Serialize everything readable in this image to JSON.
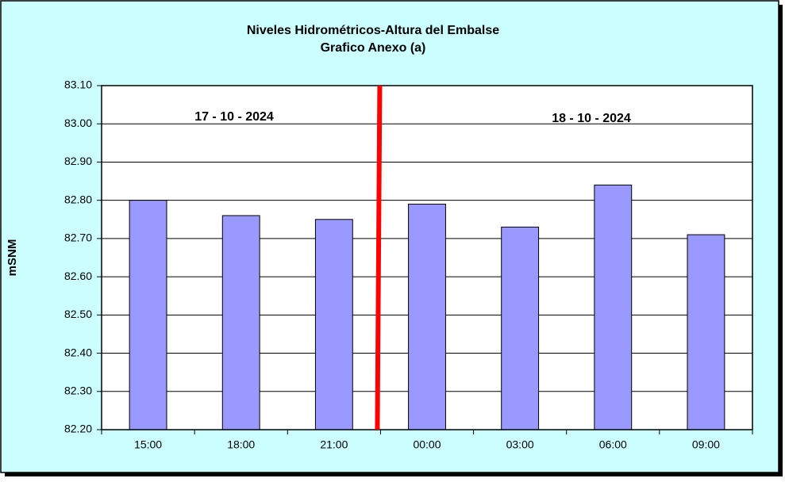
{
  "chart_data": {
    "type": "bar",
    "title": "Niveles Hidrométricos-Altura del Embalse",
    "subtitle": "Grafico Anexo (a)",
    "y_label": "mSNM",
    "annotations": [
      "17 - 10 - 2024",
      "18 - 10 - 2024"
    ],
    "categories": [
      "15:00",
      "18:00",
      "21:00",
      "00:00",
      "03:00",
      "06:00",
      "09:00"
    ],
    "values": [
      82.8,
      82.76,
      82.75,
      82.79,
      82.73,
      82.84,
      82.71
    ],
    "color": "#9999ff",
    "ylim": [
      82.2,
      83.1
    ],
    "yticks": [
      {
        "value": 82.2,
        "label": "82.20"
      },
      {
        "value": 82.3,
        "label": "82.30"
      },
      {
        "value": 82.4,
        "label": "82.40"
      },
      {
        "value": 82.5,
        "label": "82.50"
      },
      {
        "value": 82.6,
        "label": "82.60"
      },
      {
        "value": 82.7,
        "label": "82.70"
      },
      {
        "value": 82.8,
        "label": "82.80"
      },
      {
        "value": 82.9,
        "label": "82.90"
      },
      {
        "value": 83.0,
        "label": "83.00"
      },
      {
        "value": 83.1,
        "label": "83.10"
      }
    ],
    "grid": true
  }
}
